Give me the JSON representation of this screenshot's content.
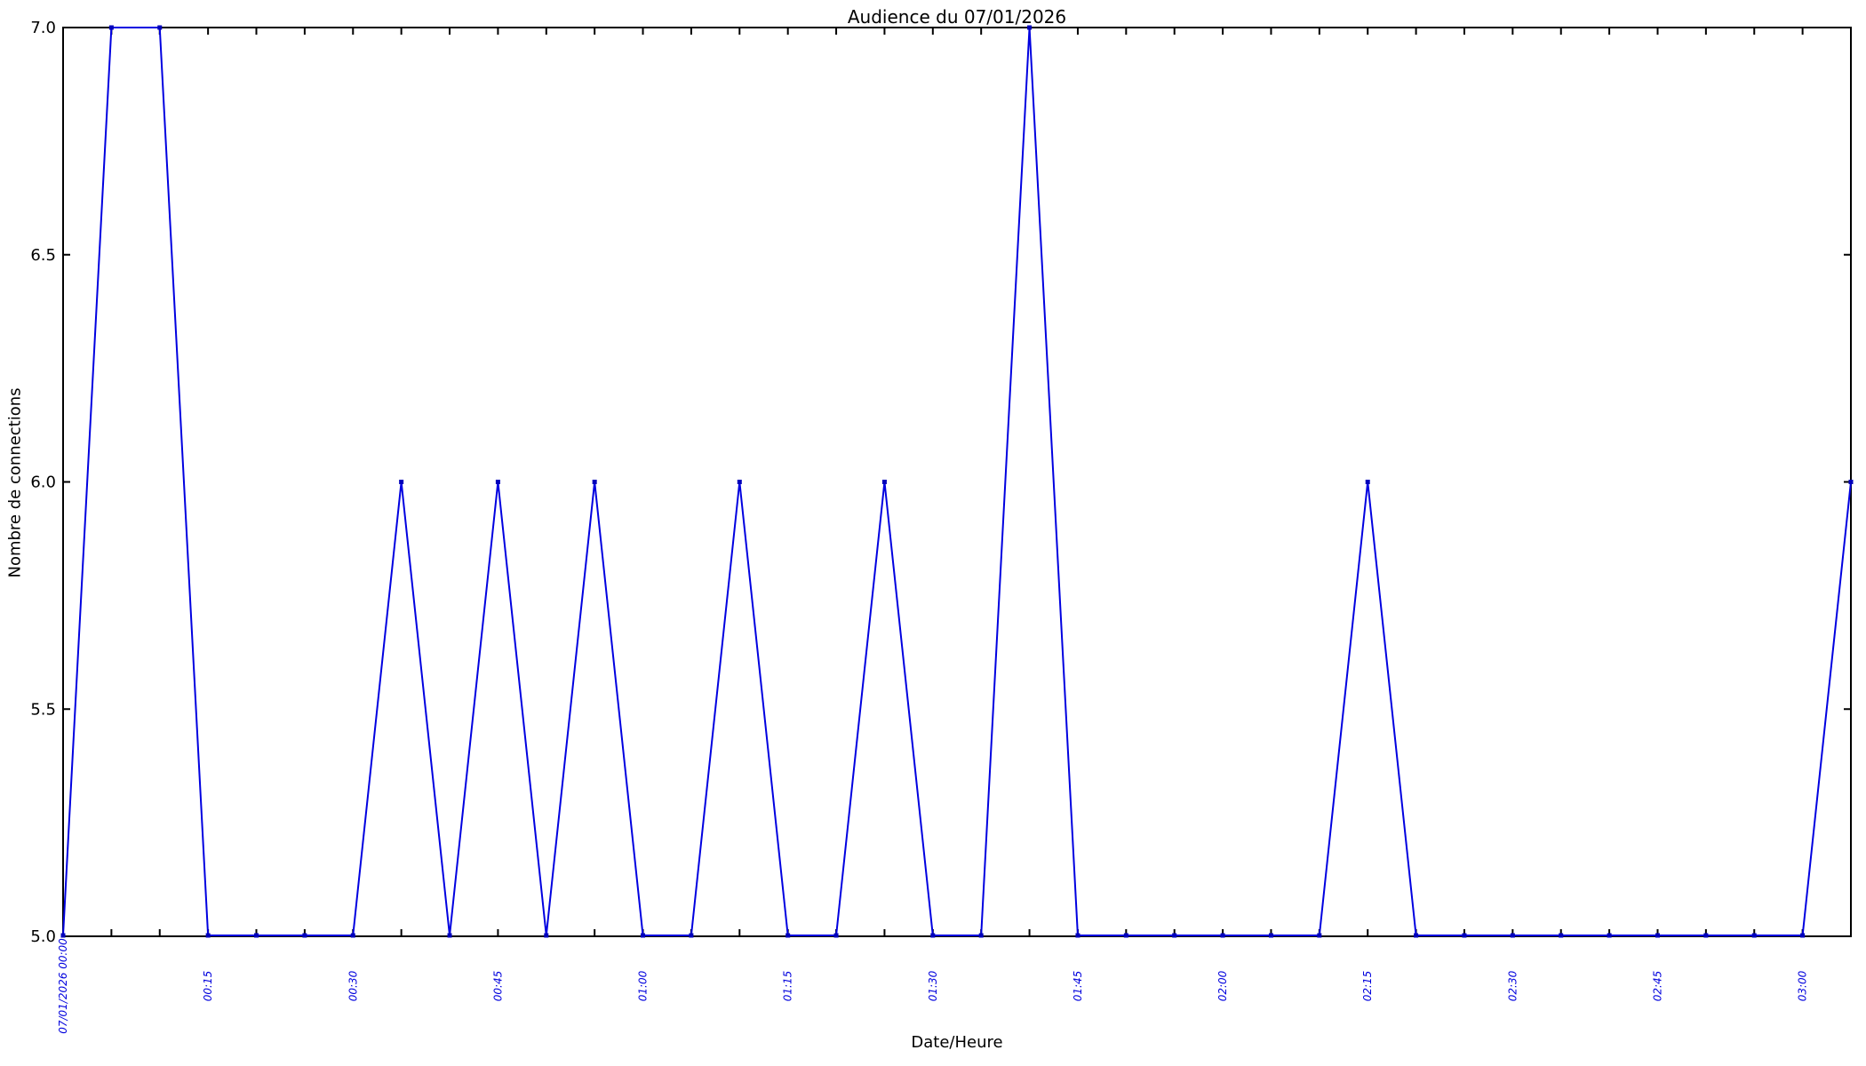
{
  "chart_data": {
    "type": "line",
    "title": "Audience du 07/01/2026",
    "xlabel": "Date/Heure",
    "ylabel": "Nombre de connections",
    "series": [
      {
        "name": "connections",
        "x_times": [
          "00:00",
          "00:05",
          "00:10",
          "00:15",
          "00:20",
          "00:25",
          "00:30",
          "00:35",
          "00:40",
          "00:45",
          "00:50",
          "00:55",
          "01:00",
          "01:05",
          "01:10",
          "01:15",
          "01:20",
          "01:25",
          "01:30",
          "01:35",
          "01:40",
          "01:45",
          "01:50",
          "01:55",
          "02:00",
          "02:05",
          "02:10",
          "02:15",
          "02:20",
          "02:25",
          "02:30",
          "02:35",
          "02:40",
          "02:45",
          "02:50",
          "02:55",
          "03:00",
          "03:05"
        ],
        "values": [
          5,
          7,
          7,
          5,
          5,
          5,
          5,
          6,
          5,
          6,
          5,
          6,
          5,
          5,
          6,
          5,
          5,
          6,
          5,
          5,
          7,
          5,
          5,
          5,
          5,
          5,
          5,
          6,
          5,
          5,
          5,
          5,
          5,
          5,
          5,
          5,
          5,
          6
        ]
      }
    ],
    "x_tick_labels": [
      "07/01/2026 00:00",
      "00:15",
      "00:30",
      "00:45",
      "01:00",
      "01:15",
      "01:30",
      "01:45",
      "02:00",
      "02:15",
      "02:30",
      "02:45",
      "03:00"
    ],
    "x_label_interval_min": 15,
    "x_minor_tick_interval_min": 5,
    "xlim_minutes": [
      0,
      185
    ],
    "y_ticks": [
      5.0,
      5.5,
      6.0,
      6.5,
      7.0
    ],
    "y_tick_labels": [
      "5.0",
      "5.5",
      "6.0",
      "6.5",
      "7.0"
    ],
    "ylim": [
      5.0,
      7.0
    ],
    "grid": false,
    "legend_position": "none",
    "line_color": "#0000e0",
    "marker_color": "#0000bb",
    "x_tick_label_color": "#0000dd",
    "axis_color": "#000000",
    "background_color": "#ffffff"
  }
}
